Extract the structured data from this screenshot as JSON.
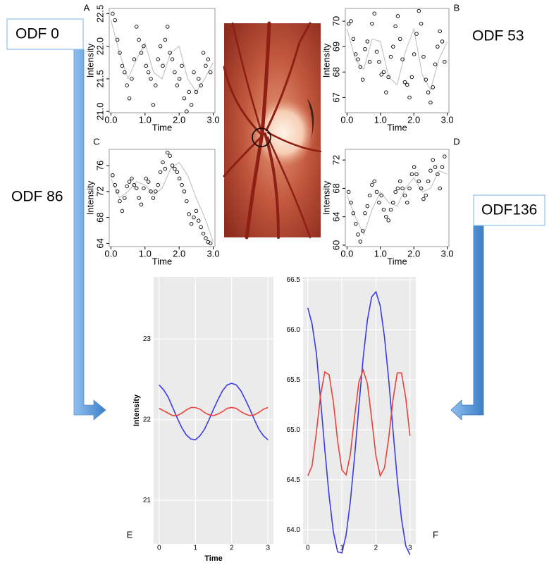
{
  "labels": [
    "ODF 0",
    "ODF 53",
    "ODF 86",
    "ODF136"
  ],
  "chart_data": [
    {
      "type": "scatter",
      "panel": "A",
      "x_label": "Time",
      "y_label": "Intensity",
      "xlim": [
        -0.05,
        3.05
      ],
      "ylim": [
        20.98,
        22.58
      ],
      "xticks": [
        {
          "value": 0,
          "label": "0.0"
        },
        {
          "value": 1,
          "label": "1.0"
        },
        {
          "value": 2,
          "label": "2.0"
        },
        {
          "value": 3,
          "label": "3.0"
        }
      ],
      "yticks": [
        {
          "value": 21,
          "label": "21.0"
        },
        {
          "value": 21.5,
          "label": "21.5"
        },
        {
          "value": 22,
          "label": "22.0"
        },
        {
          "value": 22.5,
          "label": "22.5"
        }
      ],
      "x": [
        0.05,
        0.12,
        0.19,
        0.26,
        0.33,
        0.4,
        0.47,
        0.54,
        0.61,
        0.68,
        0.75,
        0.82,
        0.89,
        0.96,
        1.03,
        1.1,
        1.17,
        1.24,
        1.31,
        1.38,
        1.45,
        1.52,
        1.59,
        1.66,
        1.73,
        1.8,
        1.87,
        1.94,
        2.01,
        2.08,
        2.15,
        2.22,
        2.29,
        2.36,
        2.43,
        2.5,
        2.57,
        2.64,
        2.71,
        2.78,
        2.85,
        2.92
      ],
      "values": [
        22.5,
        22.4,
        22.1,
        21.9,
        21.7,
        21.6,
        21.4,
        21.2,
        21.5,
        21.8,
        22.3,
        22.1,
        21.9,
        22.0,
        21.7,
        21.6,
        21.5,
        21.1,
        21.4,
        21.8,
        22.0,
        21.7,
        22.1,
        22.3,
        21.9,
        21.8,
        21.6,
        21.4,
        21.5,
        21.7,
        21.2,
        21.0,
        21.3,
        21.1,
        21.6,
        21.3,
        21.5,
        21.4,
        21.9,
        21.7,
        21.8,
        21.6
      ],
      "fit_x": [
        0,
        0.25,
        0.5,
        0.75,
        1,
        1.25,
        1.5,
        1.75,
        2,
        2.25,
        2.5,
        2.75,
        3
      ],
      "fit_values": [
        22.4,
        21.9,
        21.5,
        21.8,
        22.05,
        21.6,
        21.5,
        21.9,
        22.0,
        21.5,
        21.3,
        21.5,
        21.75
      ],
      "color": "#000000",
      "fit_color": "#bbbbbb"
    },
    {
      "type": "scatter",
      "panel": "B",
      "x_label": "Time",
      "y_label": "Intensity",
      "xlim": [
        -0.05,
        3.05
      ],
      "ylim": [
        66.4,
        70.5
      ],
      "xticks": [
        {
          "value": 0,
          "label": "0.0"
        },
        {
          "value": 1,
          "label": "1.0"
        },
        {
          "value": 2,
          "label": "2.0"
        },
        {
          "value": 3,
          "label": "3.0"
        }
      ],
      "yticks": [
        67,
        68,
        69,
        70
      ],
      "x": [
        0.05,
        0.12,
        0.19,
        0.26,
        0.33,
        0.4,
        0.47,
        0.54,
        0.61,
        0.68,
        0.75,
        0.82,
        0.89,
        0.96,
        1.03,
        1.1,
        1.17,
        1.24,
        1.31,
        1.38,
        1.45,
        1.52,
        1.59,
        1.66,
        1.73,
        1.8,
        1.87,
        1.94,
        2.01,
        2.08,
        2.15,
        2.22,
        2.29,
        2.36,
        2.43,
        2.5,
        2.57,
        2.64,
        2.71,
        2.78,
        2.85,
        2.92
      ],
      "values": [
        69.9,
        70.0,
        69.3,
        68.7,
        68.5,
        68.2,
        67.7,
        68.9,
        69.2,
        68.4,
        69.9,
        70.3,
        68.8,
        68.4,
        67.9,
        68.0,
        67.2,
        67.8,
        68.6,
        69.0,
        69.8,
        70.2,
        69.3,
        68.5,
        67.6,
        67.5,
        67.0,
        67.8,
        68.7,
        69.5,
        70.4,
        69.9,
        68.6,
        67.7,
        67.2,
        66.8,
        67.4,
        68.3,
        69.0,
        69.6,
        69.2,
        68.4
      ],
      "fit_x": [
        0,
        0.25,
        0.5,
        0.75,
        1,
        1.25,
        1.5,
        1.75,
        2,
        2.25,
        2.5,
        2.75,
        3
      ],
      "fit_values": [
        69.7,
        68.5,
        68.1,
        69.3,
        69.2,
        67.8,
        67.5,
        68.8,
        69.7,
        67.9,
        67.3,
        68.5,
        69.2
      ],
      "color": "#000000",
      "fit_color": "#bbbbbb"
    },
    {
      "type": "scatter",
      "panel": "C",
      "x_label": "Time",
      "y_label": "Intensity",
      "xlim": [
        -0.05,
        3.05
      ],
      "ylim": [
        63.5,
        78.5
      ],
      "xticks": [
        {
          "value": 0,
          "label": "0.0"
        },
        {
          "value": 1,
          "label": "1.0"
        },
        {
          "value": 2,
          "label": "2.0"
        },
        {
          "value": 3,
          "label": "3.0"
        }
      ],
      "yticks": [
        64,
        68,
        72,
        76
      ],
      "x": [
        0.05,
        0.12,
        0.19,
        0.26,
        0.33,
        0.4,
        0.47,
        0.54,
        0.61,
        0.68,
        0.75,
        0.82,
        0.89,
        0.96,
        1.03,
        1.1,
        1.17,
        1.24,
        1.31,
        1.38,
        1.45,
        1.52,
        1.59,
        1.66,
        1.73,
        1.8,
        1.87,
        1.94,
        2.01,
        2.08,
        2.15,
        2.22,
        2.29,
        2.36,
        2.43,
        2.5,
        2.57,
        2.64,
        2.71,
        2.78,
        2.85,
        2.92
      ],
      "values": [
        74.5,
        73,
        72,
        70.5,
        69,
        71,
        72.8,
        73.5,
        74,
        73,
        72.5,
        71,
        70,
        72.5,
        74,
        73.5,
        72,
        71,
        72,
        73,
        75,
        76.5,
        75.5,
        78,
        77.5,
        76,
        75.5,
        75,
        74,
        73,
        72,
        70.5,
        68.5,
        67,
        68,
        69,
        67.5,
        66.5,
        65.5,
        64.8,
        64.2,
        64
      ],
      "fit_x": [
        0,
        0.25,
        0.5,
        0.75,
        1,
        1.25,
        1.5,
        1.75,
        2,
        2.25,
        2.5,
        2.75,
        3
      ],
      "fit_values": [
        74,
        71,
        72,
        73.5,
        73,
        71.5,
        72.5,
        75.5,
        76.5,
        74.5,
        71,
        68,
        64.2
      ],
      "color": "#000000",
      "fit_color": "#bbbbbb"
    },
    {
      "type": "scatter",
      "panel": "D",
      "x_label": "Time",
      "y_label": "Intensity",
      "xlim": [
        -0.05,
        3.05
      ],
      "ylim": [
        59.8,
        73.5
      ],
      "xticks": [
        {
          "value": 0,
          "label": "0.0"
        },
        {
          "value": 1,
          "label": "1.0"
        },
        {
          "value": 2,
          "label": "2.0"
        },
        {
          "value": 3,
          "label": "3.0"
        }
      ],
      "yticks": [
        60,
        64,
        68,
        72
      ],
      "x": [
        0.05,
        0.12,
        0.19,
        0.26,
        0.33,
        0.4,
        0.47,
        0.54,
        0.61,
        0.68,
        0.75,
        0.82,
        0.89,
        0.96,
        1.03,
        1.1,
        1.17,
        1.24,
        1.31,
        1.38,
        1.45,
        1.52,
        1.59,
        1.66,
        1.73,
        1.8,
        1.87,
        1.94,
        2.01,
        2.08,
        2.15,
        2.22,
        2.29,
        2.36,
        2.43,
        2.5,
        2.57,
        2.64,
        2.71,
        2.78,
        2.85,
        2.92
      ],
      "values": [
        67.5,
        66,
        64.5,
        63,
        61.5,
        60.5,
        62,
        64.5,
        65.5,
        67,
        68.5,
        69,
        67.5,
        66,
        67,
        65,
        64,
        63.5,
        65,
        66,
        67.5,
        68,
        69,
        68,
        67,
        66,
        68,
        70,
        71,
        70,
        69,
        68,
        66.5,
        67,
        69,
        70.5,
        72,
        71,
        70,
        68,
        71,
        72.5
      ],
      "fit_x": [
        0,
        0.25,
        0.5,
        0.75,
        1,
        1.25,
        1.5,
        1.75,
        2,
        2.25,
        2.5,
        2.75,
        3
      ],
      "fit_values": [
        67,
        64,
        61.5,
        65,
        67.5,
        66,
        65.5,
        68,
        69.5,
        67.5,
        68,
        70.5,
        70
      ],
      "color": "#000000",
      "fit_color": "#bbbbbb"
    },
    {
      "type": "line",
      "panel": "E",
      "x_label": "Time",
      "y_label": "Intensity",
      "xlim": [
        -0.15,
        3.15
      ],
      "ylim": [
        20.46,
        23.77
      ],
      "xticks": [
        0,
        1,
        2,
        3
      ],
      "yticks": [
        21,
        22,
        23
      ],
      "grid": true,
      "x": [
        0,
        0.125,
        0.25,
        0.375,
        0.5,
        0.625,
        0.75,
        0.875,
        1,
        1.125,
        1.25,
        1.375,
        1.5,
        1.625,
        1.75,
        1.875,
        2,
        2.125,
        2.25,
        2.375,
        2.5,
        2.625,
        2.75,
        2.875,
        3
      ],
      "series": [
        {
          "color": "#3b3be6",
          "values": [
            22.43,
            22.37,
            22.28,
            22.15,
            22.02,
            21.9,
            21.81,
            21.76,
            21.75,
            21.8,
            21.88,
            22.0,
            22.13,
            22.25,
            22.36,
            22.43,
            22.45,
            22.43,
            22.36,
            22.25,
            22.13,
            22.0,
            21.88,
            21.8,
            21.75
          ]
        },
        {
          "color": "#e8433a",
          "values": [
            22.14,
            22.11,
            22.08,
            22.05,
            22.05,
            22.08,
            22.12,
            22.15,
            22.15,
            22.13,
            22.09,
            22.06,
            22.05,
            22.07,
            22.1,
            22.14,
            22.15,
            22.14,
            22.1,
            22.07,
            22.05,
            22.06,
            22.09,
            22.13,
            22.15
          ]
        }
      ]
    },
    {
      "type": "line",
      "panel": "F",
      "xlim": [
        -0.14,
        3.17
      ],
      "ylim": [
        63.86,
        66.53
      ],
      "xticks": [
        0,
        1,
        2,
        3
      ],
      "yticks": [
        {
          "value": 64,
          "label": "64.0"
        },
        {
          "value": 64.5,
          "label": "64.5"
        },
        {
          "value": 65,
          "label": "65.0"
        },
        {
          "value": 65.5,
          "label": "65.5"
        },
        {
          "value": 66,
          "label": "66.0"
        },
        {
          "value": 66.5,
          "label": "66.5"
        }
      ],
      "grid": true,
      "x": [
        0,
        0.125,
        0.25,
        0.375,
        0.5,
        0.625,
        0.75,
        0.875,
        1,
        1.125,
        1.25,
        1.375,
        1.5,
        1.625,
        1.75,
        1.875,
        2,
        2.125,
        2.25,
        2.375,
        2.5,
        2.625,
        2.75,
        2.875,
        3
      ],
      "series": [
        {
          "color": "#3b3be6",
          "values": [
            66.22,
            66.06,
            65.77,
            65.3,
            64.8,
            64.34,
            63.98,
            63.78,
            63.77,
            63.95,
            64.29,
            64.74,
            65.24,
            65.72,
            66.1,
            66.33,
            66.38,
            66.24,
            65.93,
            65.5,
            65.0,
            64.51,
            64.11,
            63.84,
            63.75
          ]
        },
        {
          "color": "#e8433a",
          "values": [
            64.54,
            64.64,
            64.97,
            65.35,
            65.58,
            65.55,
            65.28,
            64.89,
            64.6,
            64.55,
            64.76,
            65.14,
            65.48,
            65.6,
            65.46,
            65.11,
            64.74,
            64.54,
            64.62,
            64.92,
            65.3,
            65.57,
            65.57,
            65.32,
            64.94
          ]
        }
      ]
    }
  ]
}
